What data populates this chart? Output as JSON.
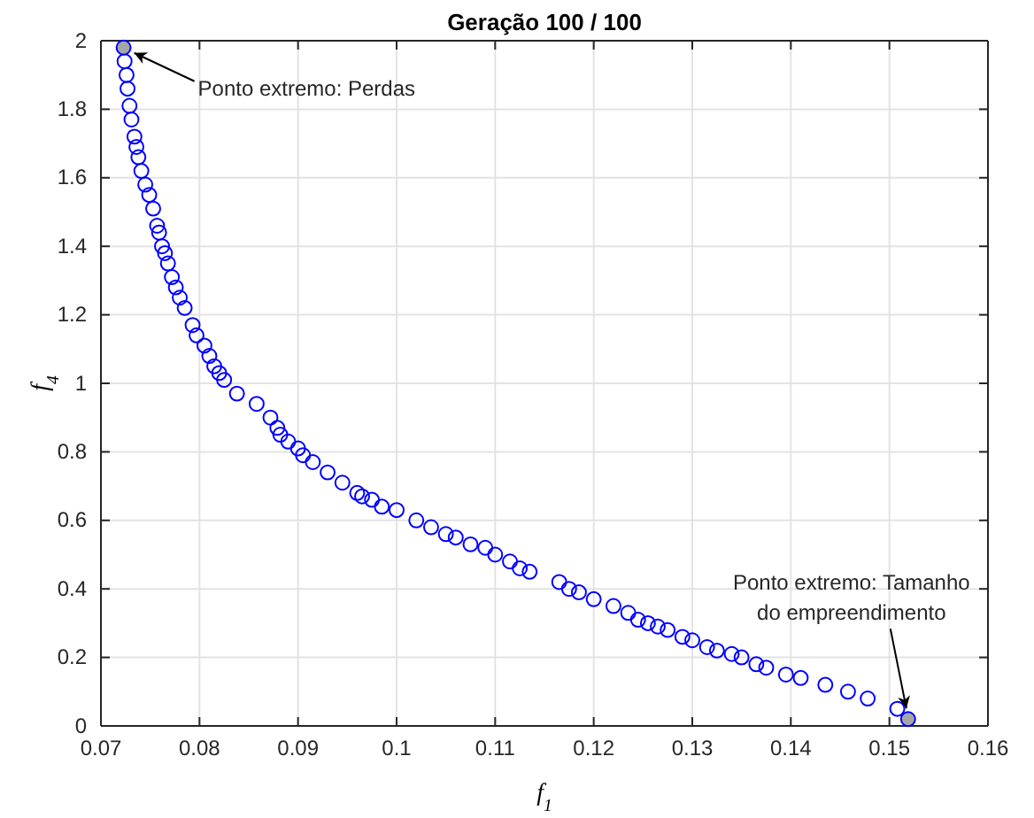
{
  "chart_data": {
    "type": "scatter",
    "title": "Geração 100 / 100",
    "xlabel": "f$_{1}$",
    "ylabel": "f$_{4}$",
    "xlim": [
      0.07,
      0.16
    ],
    "xticks": [
      0.07,
      0.08,
      0.09,
      0.1,
      0.11,
      0.12,
      0.13,
      0.14,
      0.15,
      0.16
    ],
    "ylim": [
      0,
      2
    ],
    "yticks": [
      0,
      0.2,
      0.4,
      0.6,
      0.8,
      1,
      1.2,
      1.4,
      1.6,
      1.8,
      2
    ],
    "grid": true,
    "marker": "circle",
    "series": [
      {
        "color": "#0000ff",
        "x": [
          0.0724,
          0.0726,
          0.0727,
          0.0729,
          0.0731,
          0.0734,
          0.0736,
          0.0738,
          0.0741,
          0.0745,
          0.0749,
          0.0753,
          0.0757,
          0.0759,
          0.0762,
          0.0765,
          0.0768,
          0.0772,
          0.0776,
          0.078,
          0.0785,
          0.0793,
          0.0797,
          0.0805,
          0.081,
          0.0815,
          0.082,
          0.0825,
          0.0838,
          0.0858,
          0.0872,
          0.0879,
          0.0882,
          0.089,
          0.09,
          0.0905,
          0.0915,
          0.093,
          0.0945,
          0.096,
          0.0965,
          0.0975,
          0.0985,
          0.1,
          0.102,
          0.1035,
          0.105,
          0.106,
          0.1075,
          0.109,
          0.11,
          0.1115,
          0.1125,
          0.1135,
          0.1165,
          0.1175,
          0.1185,
          0.12,
          0.122,
          0.1235,
          0.1245,
          0.1255,
          0.1265,
          0.1275,
          0.129,
          0.13,
          0.1315,
          0.1325,
          0.134,
          0.135,
          0.1365,
          0.1375,
          0.1395,
          0.141,
          0.1435,
          0.1458,
          0.1478,
          0.1508
        ],
        "values": [
          1.94,
          1.9,
          1.86,
          1.81,
          1.77,
          1.72,
          1.69,
          1.66,
          1.62,
          1.58,
          1.55,
          1.51,
          1.46,
          1.44,
          1.4,
          1.38,
          1.35,
          1.31,
          1.28,
          1.25,
          1.22,
          1.17,
          1.14,
          1.11,
          1.08,
          1.05,
          1.03,
          1.01,
          0.97,
          0.94,
          0.9,
          0.87,
          0.85,
          0.83,
          0.81,
          0.79,
          0.77,
          0.74,
          0.71,
          0.68,
          0.67,
          0.66,
          0.64,
          0.63,
          0.6,
          0.58,
          0.56,
          0.55,
          0.53,
          0.52,
          0.5,
          0.48,
          0.46,
          0.45,
          0.42,
          0.4,
          0.39,
          0.37,
          0.35,
          0.33,
          0.31,
          0.3,
          0.29,
          0.28,
          0.26,
          0.25,
          0.23,
          0.22,
          0.21,
          0.2,
          0.18,
          0.17,
          0.15,
          0.14,
          0.12,
          0.1,
          0.08,
          0.05
        ]
      },
      {
        "color": "#a6a6a6",
        "x": [
          0.0723,
          0.1519
        ],
        "values": [
          1.98,
          0.02
        ]
      }
    ],
    "annotations": [
      {
        "text": "Ponto extremo: Perdas",
        "x": 0.0723,
        "y": 1.98
      },
      {
        "text": "Ponto extremo: Tamanho do empreendimento",
        "x": 0.1519,
        "y": 0.02
      }
    ]
  }
}
